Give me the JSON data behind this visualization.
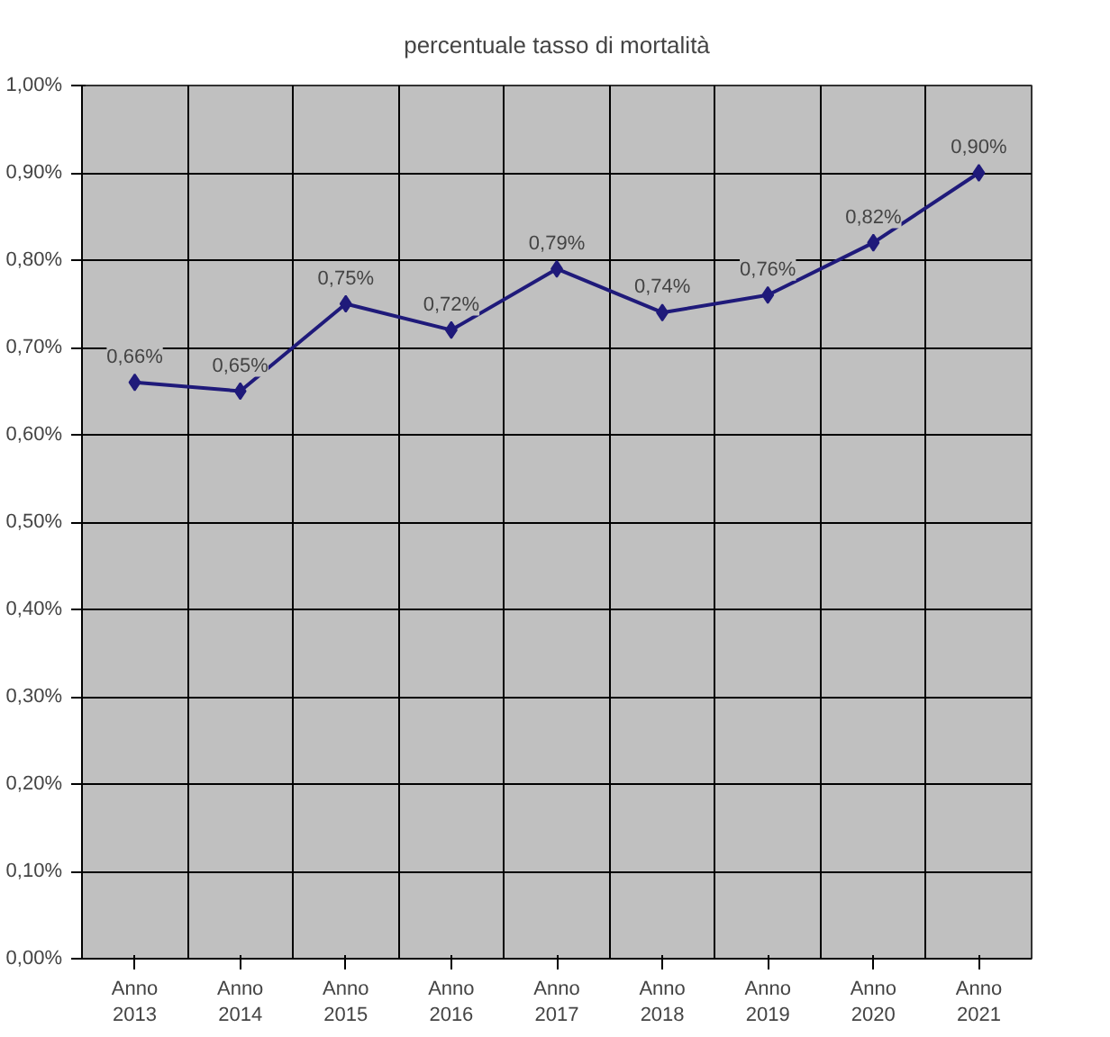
{
  "chart_data": {
    "type": "line",
    "title": "percentuale tasso di mortalità",
    "categories": [
      "Anno 2013",
      "Anno 2014",
      "Anno 2015",
      "Anno 2016",
      "Anno 2017",
      "Anno 2018",
      "Anno 2019",
      "Anno 2020",
      "Anno 2021"
    ],
    "series": [
      {
        "color": "#1f1a7a",
        "values": [
          0.66,
          0.65,
          0.75,
          0.72,
          0.79,
          0.74,
          0.76,
          0.82,
          0.9
        ],
        "value_labels": [
          "0,66%",
          "0,65%",
          "0,75%",
          "0,72%",
          "0,79%",
          "0,74%",
          "0,76%",
          "0,82%",
          "0,90%"
        ]
      }
    ],
    "ylim": [
      0,
      1.0
    ],
    "yticks": [
      {
        "value": 0,
        "label": "0,00%"
      },
      {
        "value": 0.1,
        "label": "0,10%"
      },
      {
        "value": 0.2,
        "label": "0,20%"
      },
      {
        "value": 0.3,
        "label": "0,30%"
      },
      {
        "value": 0.4,
        "label": "0,40%"
      },
      {
        "value": 0.5,
        "label": "0,50%"
      },
      {
        "value": 0.6,
        "label": "0,60%"
      },
      {
        "value": 0.7,
        "label": "0,70%"
      },
      {
        "value": 0.8,
        "label": "0,80%"
      },
      {
        "value": 0.9,
        "label": "0,90%"
      },
      {
        "value": 1.0,
        "label": "1,00%"
      }
    ],
    "grid": true,
    "marker": "diamond",
    "line_style": "solid"
  }
}
